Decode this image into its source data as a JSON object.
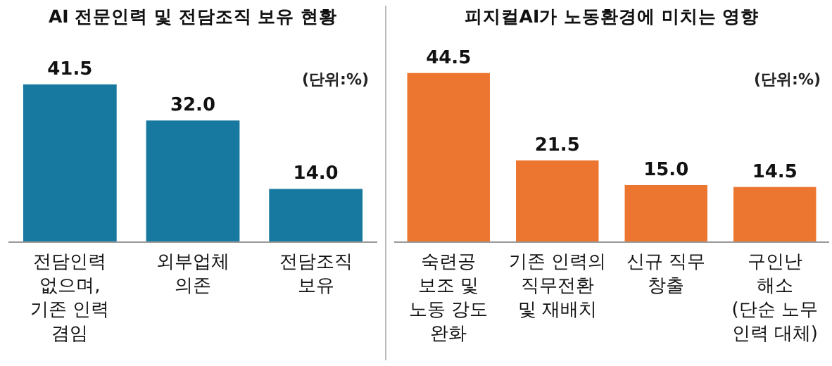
{
  "chart_data": [
    {
      "type": "bar",
      "title": "AI 전문인력 및 전담조직 보유 현황",
      "annotations": [
        "(단위:%)"
      ],
      "categories": [
        "전담인력\n없으며,\n기존 인력\n겸임",
        "외부업체\n의존",
        "전담조직\n보유"
      ],
      "values": [
        41.5,
        32.0,
        14.0
      ],
      "value_labels": [
        "41.5",
        "32.0",
        "14.0"
      ],
      "color": "#17799f"
    },
    {
      "type": "bar",
      "title": "피지컬AI가 노동환경에 미치는 영향",
      "annotations": [
        "(단위:%)"
      ],
      "categories": [
        "숙련공\n보조 및\n노동 강도\n완화",
        "기존 인력의\n직무전환\n및 재배치",
        "신규 직무\n창출",
        "구인난\n해소\n(단순 노무\n인력 대체)"
      ],
      "values": [
        44.5,
        21.5,
        15.0,
        14.5
      ],
      "value_labels": [
        "44.5",
        "21.5",
        "15.0",
        "14.5"
      ],
      "color": "#ec7630"
    }
  ]
}
